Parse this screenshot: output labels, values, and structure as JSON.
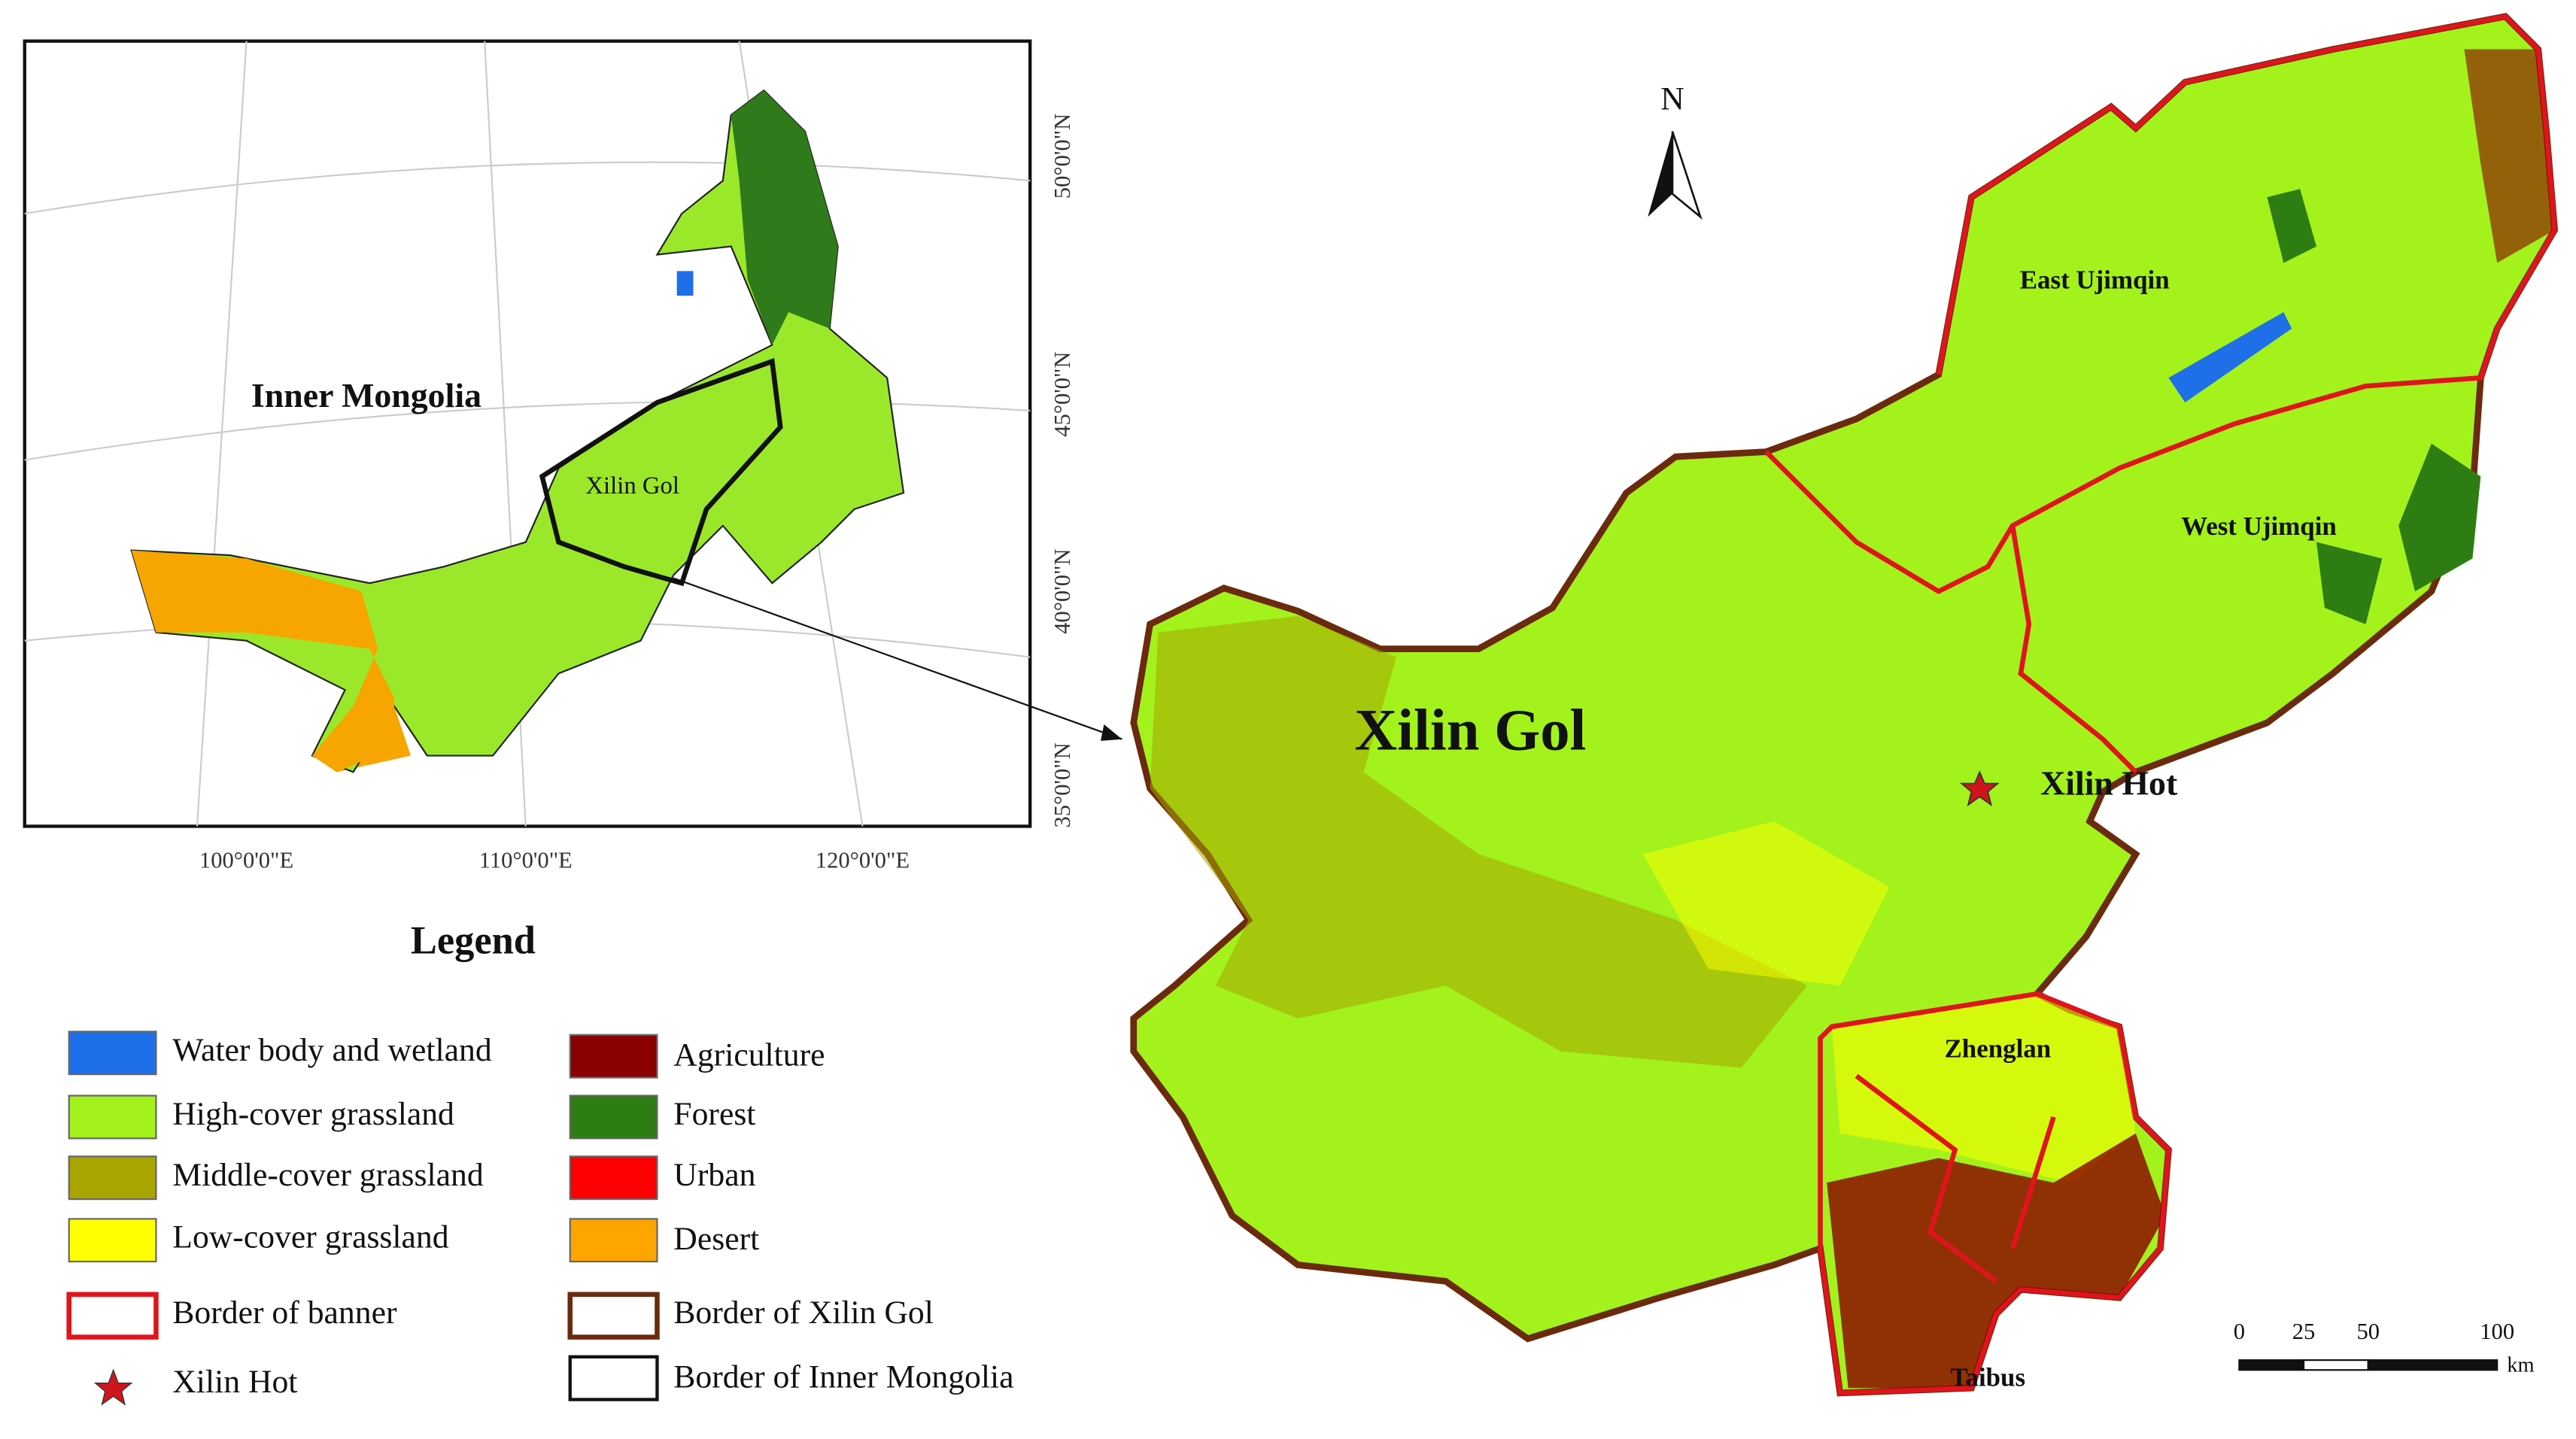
{
  "inset": {
    "region_label": "Inner Mongolia",
    "target_label": "Xilin Gol",
    "lat_labels": [
      "50°0'0\"N",
      "45°0'0\"N",
      "40°0'0\"N",
      "35°0'0\"N"
    ],
    "lon_labels": [
      "100°0'0\"E",
      "110°0'0\"E",
      "120°0'0\"E"
    ]
  },
  "legend": {
    "title": "Legend",
    "left": [
      "Water body and wetland",
      "High-cover grassland",
      "Middle-cover grassland",
      "Low-cover grassland",
      "Border of banner",
      "Xilin Hot"
    ],
    "right": [
      "Agriculture",
      "Forest",
      "Urban",
      "Desert",
      "Border of Xilin Gol",
      "Border of Inner Mongolia"
    ]
  },
  "map": {
    "title": "Xilin Gol",
    "north": "N",
    "labels": [
      "East Ujimqin",
      "West Ujimqin",
      "Xilin Hot",
      "Zhenglan",
      "Taibus"
    ]
  },
  "scale_bar": {
    "ticks": [
      0,
      25,
      50,
      100
    ],
    "unit": "km"
  }
}
